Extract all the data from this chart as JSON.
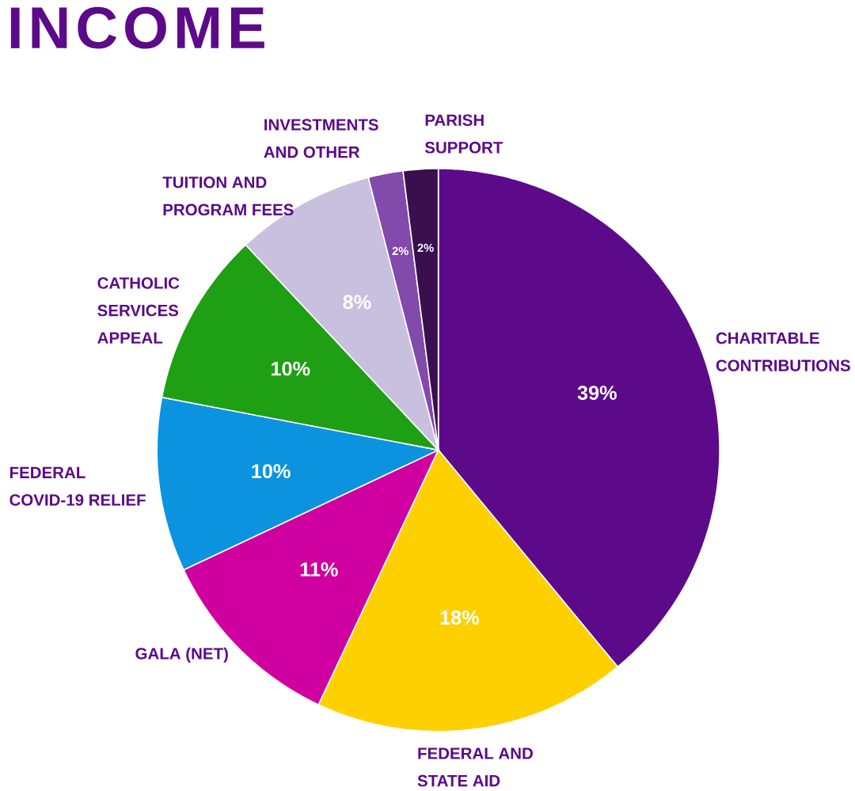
{
  "chart_data": {
    "type": "pie",
    "title": "INCOME",
    "categories": [
      "CHARITABLE CONTRIBUTIONS",
      "FEDERAL AND STATE AID",
      "GALA (NET)",
      "FEDERAL COVID-19 RELIEF",
      "CATHOLIC SERVICES APPEAL",
      "TUITION AND PROGRAM FEES",
      "INVESTMENTS AND OTHER",
      "PARISH SUPPORT"
    ],
    "values": [
      39,
      18,
      11,
      10,
      10,
      8,
      2,
      2
    ],
    "value_labels": [
      "39%",
      "18%",
      "11%",
      "10%",
      "10%",
      "8%",
      "2%",
      "2%"
    ],
    "colors": [
      "#5c0a8a",
      "#ffd000",
      "#cf009f",
      "#0b93e0",
      "#1f9f13",
      "#c9bfdf",
      "#814aab",
      "#3a0f4e"
    ]
  }
}
